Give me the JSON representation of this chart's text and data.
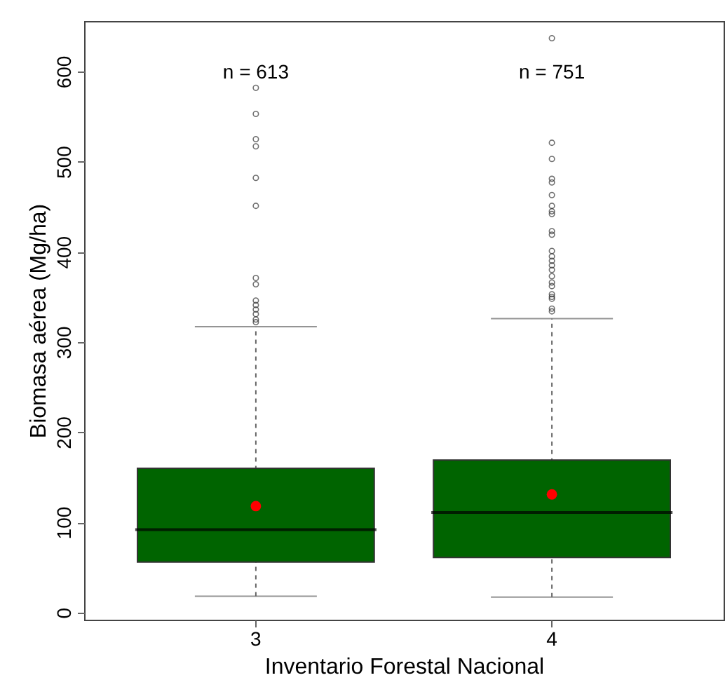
{
  "chart_data": {
    "type": "box",
    "xlabel": "Inventario Forestal Nacional",
    "ylabel": "Biomasa aérea (Mg/ha)",
    "categories": [
      "3",
      "4"
    ],
    "series": [
      {
        "color": "#006400",
        "boxes": [
          {
            "low": 18,
            "q1": 56,
            "median": 92,
            "q3": 160,
            "high": 317,
            "mean": 118,
            "outliers": [
              582,
              553,
              525,
              517,
              482,
              451,
              371,
              364,
              346,
              341,
              336,
              331,
              325,
              322
            ]
          },
          {
            "low": 17,
            "q1": 61,
            "median": 111,
            "q3": 169,
            "high": 326,
            "mean": 131,
            "outliers": [
              637,
              521,
              503,
              481,
              477,
              463,
              451,
              445,
              442,
              423,
              419,
              401,
              395,
              390,
              385,
              380,
              373,
              366,
              362,
              353,
              350,
              348,
              337,
              334
            ]
          }
        ]
      }
    ],
    "ylim": [
      -8,
      656
    ],
    "yticks": [
      0,
      100,
      200,
      300,
      400,
      500,
      600
    ],
    "grid": false,
    "annotations": [
      "n = 613",
      "n = 751"
    ]
  }
}
